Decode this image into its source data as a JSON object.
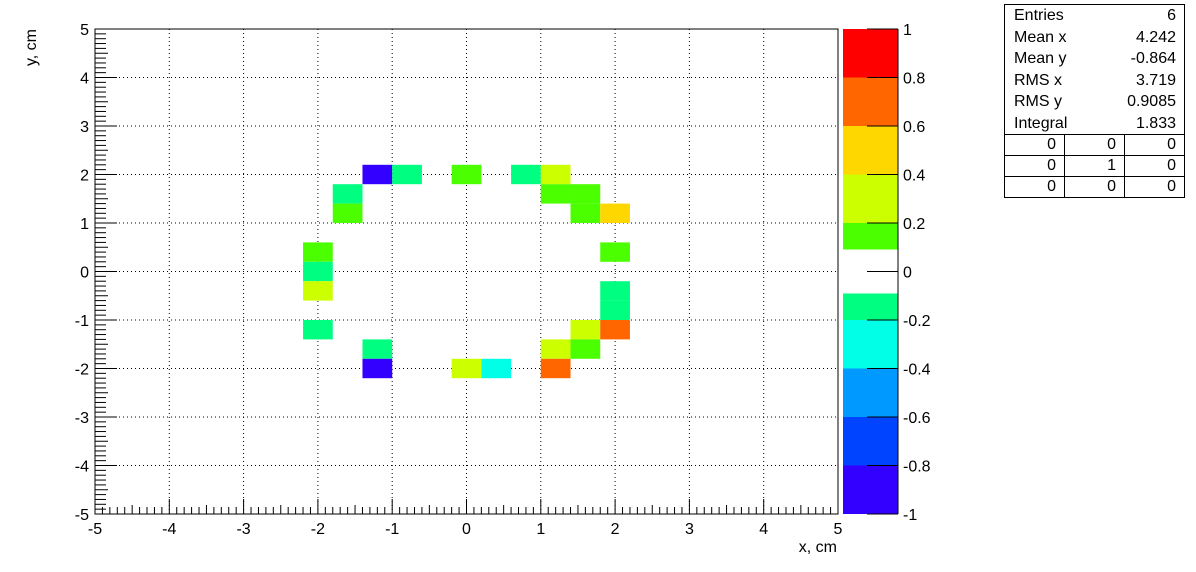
{
  "chart_data": {
    "type": "heatmap",
    "xlabel": "x, cm",
    "ylabel": "y, cm",
    "xlim": [
      -5,
      5
    ],
    "ylim": [
      -5,
      5
    ],
    "zlim": [
      -1,
      1
    ],
    "grid": true,
    "bin_width": 0.4,
    "x_ticks": [
      "-5",
      "-4",
      "-3",
      "-2",
      "-1",
      "0",
      "1",
      "2",
      "3",
      "4",
      "5"
    ],
    "y_ticks": [
      "-5",
      "-4",
      "-3",
      "-2",
      "-1",
      "0",
      "1",
      "2",
      "3",
      "4",
      "5"
    ],
    "z_ticks": [
      "-1",
      "-0.8",
      "-0.6",
      "-0.4",
      "-0.2",
      "0",
      "0.2",
      "0.4",
      "0.6",
      "0.8",
      "1"
    ],
    "palette": {
      "negative": [
        "#3300ff",
        "#0044ff",
        "#0099ff",
        "#00ffe6",
        "#00ff80"
      ],
      "positive": [
        "#4cff00",
        "#ccff00",
        "#ffd700",
        "#ff6600",
        "#ff0000"
      ],
      "zero": "#ffffff"
    },
    "bins": [
      {
        "x": -1.2,
        "y": 2.0,
        "z": -0.9
      },
      {
        "x": -0.8,
        "y": 2.0,
        "z": -0.1
      },
      {
        "x": 0.0,
        "y": 2.0,
        "z": 0.1
      },
      {
        "x": 0.8,
        "y": 2.0,
        "z": -0.1
      },
      {
        "x": 1.2,
        "y": 2.0,
        "z": 0.3
      },
      {
        "x": -1.6,
        "y": 1.6,
        "z": -0.1
      },
      {
        "x": 1.2,
        "y": 1.6,
        "z": 0.1
      },
      {
        "x": 1.6,
        "y": 1.6,
        "z": 0.1
      },
      {
        "x": -1.6,
        "y": 1.2,
        "z": 0.1
      },
      {
        "x": 1.6,
        "y": 1.2,
        "z": 0.1
      },
      {
        "x": 2.0,
        "y": 1.2,
        "z": 0.5
      },
      {
        "x": -2.0,
        "y": 0.4,
        "z": 0.1
      },
      {
        "x": 2.0,
        "y": 0.4,
        "z": 0.1
      },
      {
        "x": -2.0,
        "y": 0.0,
        "z": -0.1
      },
      {
        "x": -2.0,
        "y": -0.4,
        "z": 0.3
      },
      {
        "x": 2.0,
        "y": -0.4,
        "z": -0.1
      },
      {
        "x": 2.0,
        "y": -0.8,
        "z": -0.1
      },
      {
        "x": -2.0,
        "y": -1.2,
        "z": -0.1
      },
      {
        "x": 1.6,
        "y": -1.2,
        "z": 0.3
      },
      {
        "x": 2.0,
        "y": -1.2,
        "z": 0.7
      },
      {
        "x": -1.2,
        "y": -1.6,
        "z": -0.1
      },
      {
        "x": 1.2,
        "y": -1.6,
        "z": 0.3
      },
      {
        "x": 1.6,
        "y": -1.6,
        "z": 0.1
      },
      {
        "x": -1.2,
        "y": -2.0,
        "z": -0.9
      },
      {
        "x": 0.0,
        "y": -2.0,
        "z": 0.3
      },
      {
        "x": 0.4,
        "y": -2.0,
        "z": -0.3
      },
      {
        "x": 1.2,
        "y": -2.0,
        "z": 0.7
      }
    ]
  },
  "stats": {
    "rows": [
      {
        "label": "Entries",
        "value": "6"
      },
      {
        "label": "Mean x",
        "value": "4.242"
      },
      {
        "label": "Mean y",
        "value": "-0.864"
      },
      {
        "label": "RMS x",
        "value": "3.719"
      },
      {
        "label": "RMS y",
        "value": "0.9085"
      },
      {
        "label": "Integral",
        "value": "1.833"
      }
    ],
    "grid": [
      [
        "0",
        "0",
        "0"
      ],
      [
        "0",
        "1",
        "0"
      ],
      [
        "0",
        "0",
        "0"
      ]
    ]
  }
}
